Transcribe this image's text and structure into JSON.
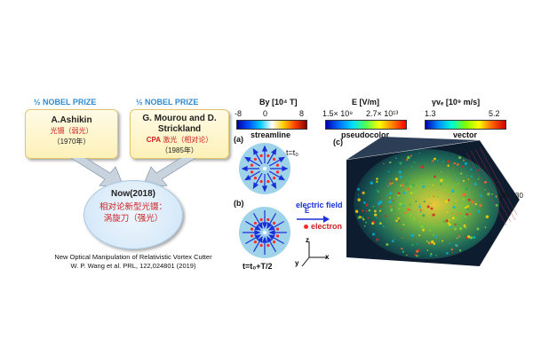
{
  "left": {
    "prize_left": "½ NOBEL PRIZE",
    "prize_right": "½ NOBEL PRIZE",
    "box1": {
      "name": "A.Ashikin",
      "sub": "光镊（弱光）",
      "year": "（1970年）"
    },
    "box2": {
      "name": "G. Mourou and D. Strickland",
      "sub_prefix": "CPA",
      "sub": "激光（相对论）",
      "year": "（1985年）"
    },
    "now": {
      "title": "Now(2018)",
      "body": "相对论新型光镊：涡旋刀（强光）"
    },
    "citation_line1": "New Optical Manipulation of Relativistic Vortex Cutter",
    "citation_line2": "W. P. Wang et al. PRL, 122,024801  (2019)"
  },
  "right": {
    "colorbar_b": {
      "label": "By [10⁴ T]",
      "min": "-8",
      "mid": "0",
      "max": "8",
      "caption": "streamline"
    },
    "colorbar_e": {
      "label": "E [V/m]",
      "min": "1.5× 10⁹",
      "max": "2.7× 10¹³",
      "caption": "pseudocolor"
    },
    "colorbar_v": {
      "label": "γvₑ [10⁹ m/s]",
      "min": "1.3",
      "max": "5.2",
      "caption": "vector"
    },
    "panel_a": "(a)",
    "panel_b": "(b)",
    "panel_c": "(c)",
    "time_a": "t=t₀",
    "time_b": "t=t₀+T/2",
    "legend_field": "electric field",
    "legend_e": "E",
    "legend_electron": "electron",
    "axis_z": "z",
    "axis_y": "y",
    "axis_x": "x",
    "tick_28": "28",
    "tick_30": "30"
  },
  "colors": {
    "prize": "#2e8bd6",
    "red_text": "#cc2222",
    "disc": "#9fd3ea",
    "arrow": "#1a2fd6"
  }
}
